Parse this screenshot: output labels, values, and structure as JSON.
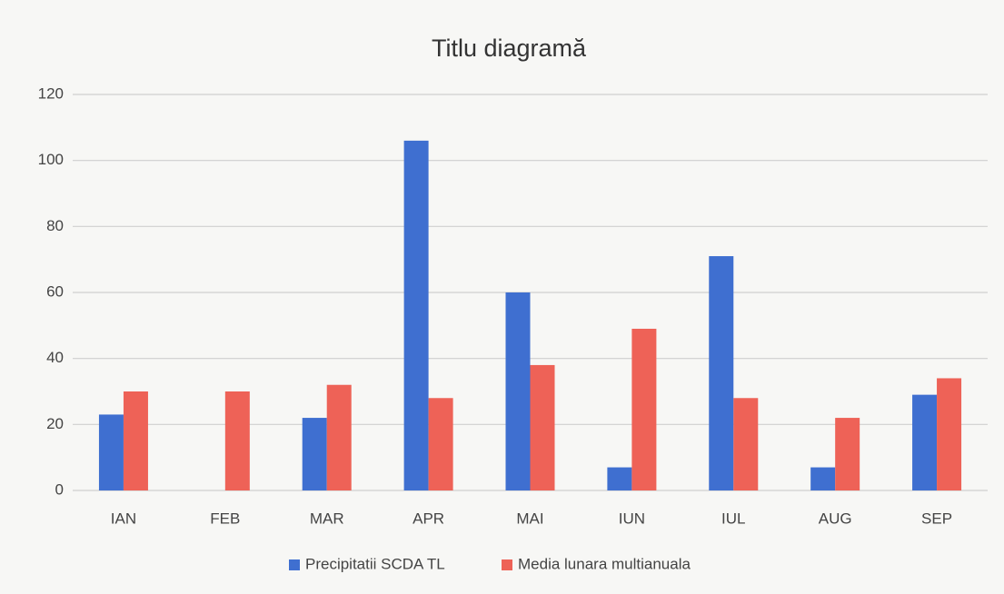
{
  "chart_data": {
    "type": "bar",
    "title": "Titlu diagramă",
    "categories": [
      "IAN",
      "FEB",
      "MAR",
      "APR",
      "MAI",
      "IUN",
      "IUL",
      "AUG",
      "SEP"
    ],
    "series": [
      {
        "name": "Precipitatii SCDA TL",
        "color": "#3f6fd0",
        "values": [
          23,
          0,
          22,
          106,
          60,
          7,
          71,
          7,
          29
        ]
      },
      {
        "name": "Media lunara multianuala",
        "color": "#ee6257",
        "values": [
          30,
          30,
          32,
          28,
          38,
          49,
          28,
          22,
          34
        ]
      }
    ],
    "ylim": [
      0,
      120
    ],
    "yticks": [
      0,
      20,
      40,
      60,
      80,
      100,
      120
    ],
    "grid": true,
    "legend": "bottom"
  }
}
